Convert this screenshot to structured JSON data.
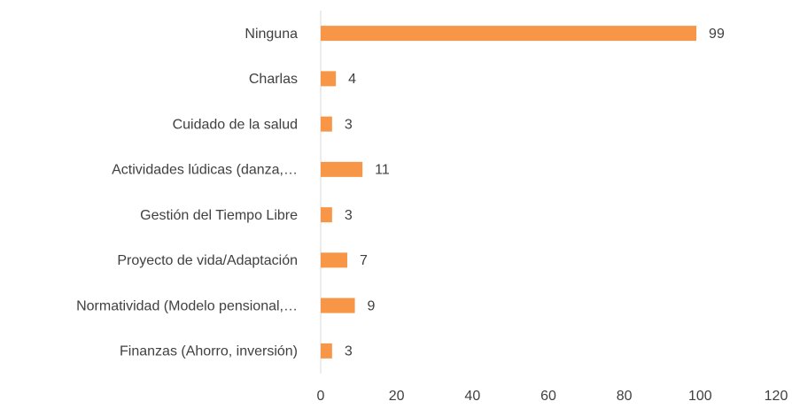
{
  "chart_data": {
    "type": "bar",
    "orientation": "horizontal",
    "categories": [
      "Ninguna",
      "Charlas",
      "Cuidado de la salud",
      "Actividades lúdicas (danza,…",
      "Gestión del Tiempo Libre",
      "Proyecto de vida/Adaptación",
      "Normatividad (Modelo pensional,…",
      "Finanzas (Ahorro, inversión)"
    ],
    "values": [
      99,
      4,
      3,
      11,
      3,
      7,
      9,
      3
    ],
    "color": "#f79646",
    "xlim": [
      0,
      120
    ],
    "xticks": [
      0,
      20,
      40,
      60,
      80,
      100,
      120
    ],
    "grid": false
  }
}
